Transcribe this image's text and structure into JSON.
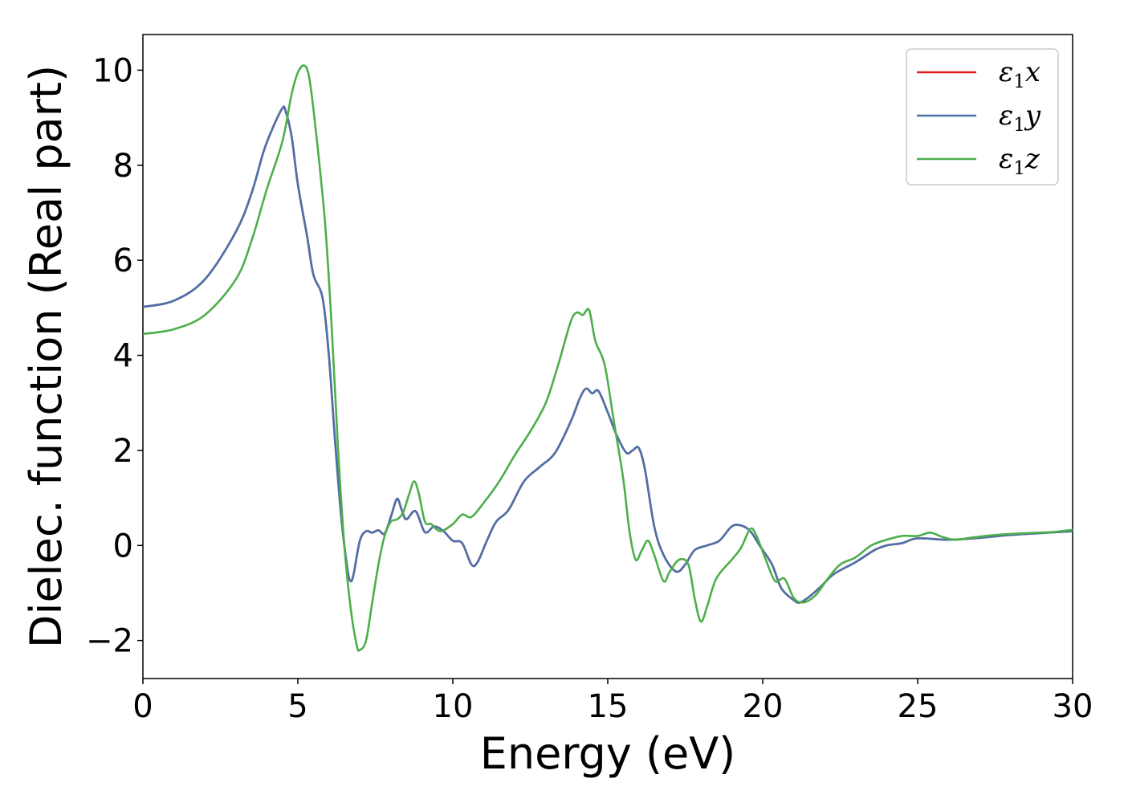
{
  "chart_data": {
    "type": "line",
    "xlabel": "Energy (eV)",
    "ylabel": "Dielec. function (Real part)",
    "xlim": [
      0,
      30
    ],
    "ylim": [
      -2.8,
      10.75
    ],
    "x_ticks": [
      0,
      5,
      10,
      15,
      20,
      25,
      30
    ],
    "x_tick_labels": [
      "0",
      "5",
      "10",
      "15",
      "20",
      "25",
      "30"
    ],
    "y_ticks": [
      -2,
      0,
      2,
      4,
      6,
      8,
      10
    ],
    "y_tick_labels": [
      "−2",
      "0",
      "2",
      "4",
      "6",
      "8",
      "10"
    ],
    "grid": false,
    "legend_position": "top-right",
    "series": [
      {
        "name": "ε",
        "sub": "1",
        "axis": "x",
        "color": "#e41a1c",
        "points": [
          [
            0,
            5.02
          ],
          [
            1,
            5.15
          ],
          [
            2,
            5.6
          ],
          [
            3,
            6.6
          ],
          [
            3.5,
            7.4
          ],
          [
            3.9,
            8.3
          ],
          [
            4.2,
            8.8
          ],
          [
            4.5,
            9.2
          ],
          [
            4.6,
            9.15
          ],
          [
            4.8,
            8.6
          ],
          [
            5.0,
            7.6
          ],
          [
            5.3,
            6.5
          ],
          [
            5.5,
            5.7
          ],
          [
            5.8,
            5.2
          ],
          [
            6.0,
            4.0
          ],
          [
            6.2,
            2.2
          ],
          [
            6.4,
            0.6
          ],
          [
            6.6,
            -0.5
          ],
          [
            6.7,
            -0.75
          ],
          [
            6.8,
            -0.6
          ],
          [
            7.0,
            0.1
          ],
          [
            7.2,
            0.3
          ],
          [
            7.4,
            0.27
          ],
          [
            7.6,
            0.32
          ],
          [
            7.8,
            0.25
          ],
          [
            8.0,
            0.6
          ],
          [
            8.2,
            0.98
          ],
          [
            8.35,
            0.75
          ],
          [
            8.5,
            0.55
          ],
          [
            8.8,
            0.72
          ],
          [
            9.1,
            0.28
          ],
          [
            9.4,
            0.4
          ],
          [
            9.7,
            0.3
          ],
          [
            10.0,
            0.1
          ],
          [
            10.3,
            0.05
          ],
          [
            10.6,
            -0.4
          ],
          [
            10.8,
            -0.35
          ],
          [
            11.1,
            0.1
          ],
          [
            11.4,
            0.5
          ],
          [
            11.8,
            0.75
          ],
          [
            12.3,
            1.35
          ],
          [
            12.8,
            1.65
          ],
          [
            13.3,
            1.95
          ],
          [
            13.8,
            2.6
          ],
          [
            14.1,
            3.1
          ],
          [
            14.3,
            3.3
          ],
          [
            14.5,
            3.2
          ],
          [
            14.7,
            3.25
          ],
          [
            15.0,
            2.8
          ],
          [
            15.3,
            2.3
          ],
          [
            15.6,
            1.95
          ],
          [
            15.8,
            2.0
          ],
          [
            16.0,
            2.05
          ],
          [
            16.2,
            1.6
          ],
          [
            16.5,
            0.4
          ],
          [
            16.8,
            -0.2
          ],
          [
            17.2,
            -0.55
          ],
          [
            17.5,
            -0.4
          ],
          [
            17.8,
            -0.1
          ],
          [
            18.2,
            0.0
          ],
          [
            18.6,
            0.1
          ],
          [
            19.0,
            0.4
          ],
          [
            19.3,
            0.42
          ],
          [
            19.6,
            0.3
          ],
          [
            19.9,
            0.0
          ],
          [
            20.3,
            -0.4
          ],
          [
            20.6,
            -0.9
          ],
          [
            21.0,
            -1.15
          ],
          [
            21.2,
            -1.2
          ],
          [
            21.5,
            -1.08
          ],
          [
            21.9,
            -0.85
          ],
          [
            22.3,
            -0.6
          ],
          [
            23.0,
            -0.35
          ],
          [
            23.6,
            -0.1
          ],
          [
            24.0,
            0.0
          ],
          [
            24.5,
            0.05
          ],
          [
            25.0,
            0.15
          ],
          [
            26.0,
            0.12
          ],
          [
            27.0,
            0.16
          ],
          [
            28.0,
            0.22
          ],
          [
            29.0,
            0.26
          ],
          [
            30.0,
            0.3
          ]
        ]
      },
      {
        "name": "ε",
        "sub": "1",
        "axis": "y",
        "color": "#4a72aa",
        "points": [
          [
            0,
            5.02
          ],
          [
            1,
            5.15
          ],
          [
            2,
            5.6
          ],
          [
            3,
            6.6
          ],
          [
            3.5,
            7.4
          ],
          [
            3.9,
            8.3
          ],
          [
            4.2,
            8.8
          ],
          [
            4.5,
            9.2
          ],
          [
            4.6,
            9.15
          ],
          [
            4.8,
            8.6
          ],
          [
            5.0,
            7.6
          ],
          [
            5.3,
            6.5
          ],
          [
            5.5,
            5.7
          ],
          [
            5.8,
            5.2
          ],
          [
            6.0,
            4.0
          ],
          [
            6.2,
            2.2
          ],
          [
            6.4,
            0.6
          ],
          [
            6.6,
            -0.5
          ],
          [
            6.7,
            -0.75
          ],
          [
            6.8,
            -0.6
          ],
          [
            7.0,
            0.1
          ],
          [
            7.2,
            0.3
          ],
          [
            7.4,
            0.27
          ],
          [
            7.6,
            0.32
          ],
          [
            7.8,
            0.25
          ],
          [
            8.0,
            0.6
          ],
          [
            8.2,
            0.98
          ],
          [
            8.35,
            0.75
          ],
          [
            8.5,
            0.55
          ],
          [
            8.8,
            0.72
          ],
          [
            9.1,
            0.28
          ],
          [
            9.4,
            0.4
          ],
          [
            9.7,
            0.3
          ],
          [
            10.0,
            0.1
          ],
          [
            10.3,
            0.05
          ],
          [
            10.6,
            -0.4
          ],
          [
            10.8,
            -0.35
          ],
          [
            11.1,
            0.1
          ],
          [
            11.4,
            0.5
          ],
          [
            11.8,
            0.75
          ],
          [
            12.3,
            1.35
          ],
          [
            12.8,
            1.65
          ],
          [
            13.3,
            1.95
          ],
          [
            13.8,
            2.6
          ],
          [
            14.1,
            3.1
          ],
          [
            14.3,
            3.3
          ],
          [
            14.5,
            3.2
          ],
          [
            14.7,
            3.25
          ],
          [
            15.0,
            2.8
          ],
          [
            15.3,
            2.3
          ],
          [
            15.6,
            1.95
          ],
          [
            15.8,
            2.0
          ],
          [
            16.0,
            2.05
          ],
          [
            16.2,
            1.6
          ],
          [
            16.5,
            0.4
          ],
          [
            16.8,
            -0.2
          ],
          [
            17.2,
            -0.55
          ],
          [
            17.5,
            -0.4
          ],
          [
            17.8,
            -0.1
          ],
          [
            18.2,
            0.0
          ],
          [
            18.6,
            0.1
          ],
          [
            19.0,
            0.4
          ],
          [
            19.3,
            0.42
          ],
          [
            19.6,
            0.3
          ],
          [
            19.9,
            0.0
          ],
          [
            20.3,
            -0.4
          ],
          [
            20.6,
            -0.9
          ],
          [
            21.0,
            -1.15
          ],
          [
            21.2,
            -1.2
          ],
          [
            21.5,
            -1.08
          ],
          [
            21.9,
            -0.85
          ],
          [
            22.3,
            -0.6
          ],
          [
            23.0,
            -0.35
          ],
          [
            23.6,
            -0.1
          ],
          [
            24.0,
            0.0
          ],
          [
            24.5,
            0.05
          ],
          [
            25.0,
            0.15
          ],
          [
            26.0,
            0.12
          ],
          [
            27.0,
            0.16
          ],
          [
            28.0,
            0.22
          ],
          [
            29.0,
            0.26
          ],
          [
            30.0,
            0.3
          ]
        ]
      },
      {
        "name": "ε",
        "sub": "1",
        "axis": "z",
        "color": "#4daf4a",
        "points": [
          [
            0,
            4.45
          ],
          [
            1,
            4.55
          ],
          [
            2,
            4.85
          ],
          [
            3,
            5.6
          ],
          [
            3.5,
            6.4
          ],
          [
            4.0,
            7.5
          ],
          [
            4.5,
            8.5
          ],
          [
            4.8,
            9.5
          ],
          [
            5.0,
            9.95
          ],
          [
            5.2,
            10.1
          ],
          [
            5.35,
            9.9
          ],
          [
            5.5,
            9.2
          ],
          [
            5.7,
            8.0
          ],
          [
            5.9,
            6.6
          ],
          [
            6.1,
            4.5
          ],
          [
            6.3,
            2.0
          ],
          [
            6.5,
            0.0
          ],
          [
            6.7,
            -1.3
          ],
          [
            6.9,
            -2.1
          ],
          [
            7.0,
            -2.2
          ],
          [
            7.2,
            -2.0
          ],
          [
            7.4,
            -1.2
          ],
          [
            7.6,
            -0.4
          ],
          [
            7.8,
            0.2
          ],
          [
            8.0,
            0.5
          ],
          [
            8.2,
            0.55
          ],
          [
            8.4,
            0.7
          ],
          [
            8.6,
            1.1
          ],
          [
            8.75,
            1.35
          ],
          [
            8.9,
            1.1
          ],
          [
            9.1,
            0.5
          ],
          [
            9.3,
            0.45
          ],
          [
            9.6,
            0.3
          ],
          [
            10.0,
            0.45
          ],
          [
            10.3,
            0.65
          ],
          [
            10.6,
            0.6
          ],
          [
            11.0,
            0.9
          ],
          [
            11.5,
            1.35
          ],
          [
            12.0,
            1.9
          ],
          [
            12.5,
            2.4
          ],
          [
            13.0,
            3.0
          ],
          [
            13.4,
            3.8
          ],
          [
            13.8,
            4.7
          ],
          [
            14.0,
            4.9
          ],
          [
            14.2,
            4.85
          ],
          [
            14.4,
            4.95
          ],
          [
            14.6,
            4.3
          ],
          [
            14.9,
            3.8
          ],
          [
            15.2,
            2.6
          ],
          [
            15.5,
            1.4
          ],
          [
            15.7,
            0.3
          ],
          [
            15.9,
            -0.3
          ],
          [
            16.1,
            -0.1
          ],
          [
            16.3,
            0.1
          ],
          [
            16.5,
            -0.2
          ],
          [
            16.8,
            -0.75
          ],
          [
            17.0,
            -0.55
          ],
          [
            17.3,
            -0.3
          ],
          [
            17.6,
            -0.4
          ],
          [
            17.8,
            -1.1
          ],
          [
            18.0,
            -1.6
          ],
          [
            18.2,
            -1.3
          ],
          [
            18.5,
            -0.7
          ],
          [
            19.0,
            -0.3
          ],
          [
            19.3,
            -0.05
          ],
          [
            19.6,
            0.35
          ],
          [
            19.8,
            0.2
          ],
          [
            20.1,
            -0.3
          ],
          [
            20.4,
            -0.75
          ],
          [
            20.7,
            -0.7
          ],
          [
            21.0,
            -1.1
          ],
          [
            21.3,
            -1.2
          ],
          [
            21.7,
            -1.05
          ],
          [
            22.1,
            -0.7
          ],
          [
            22.5,
            -0.4
          ],
          [
            23.0,
            -0.25
          ],
          [
            23.5,
            0.0
          ],
          [
            24.0,
            0.12
          ],
          [
            24.5,
            0.2
          ],
          [
            25.0,
            0.2
          ],
          [
            25.4,
            0.27
          ],
          [
            25.8,
            0.18
          ],
          [
            26.2,
            0.12
          ],
          [
            26.8,
            0.17
          ],
          [
            27.5,
            0.22
          ],
          [
            28.5,
            0.26
          ],
          [
            29.3,
            0.28
          ],
          [
            30.0,
            0.33
          ]
        ]
      }
    ]
  }
}
